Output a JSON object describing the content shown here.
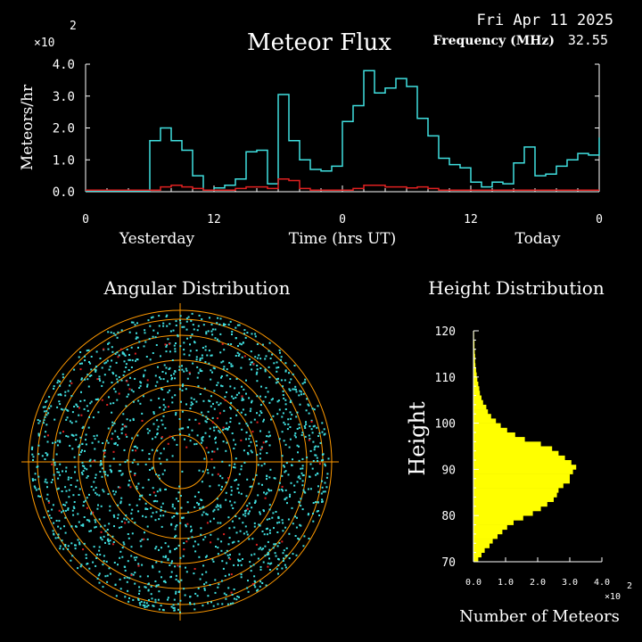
{
  "header": {
    "date": "Fri Apr 11 2025",
    "frequency_label": "Frequency (MHz)",
    "frequency_value": "32.55",
    "scale_note": "×10",
    "scale_exp": "2"
  },
  "colors": {
    "flux_line": "#40e0e0",
    "flux_secondary": "#e02020",
    "radar_ring": "#ff9900",
    "radar_dot": "#40e0e0",
    "radar_dot_alt": "#e02020",
    "hist_fill": "#ffff00",
    "axis": "#ffffff"
  },
  "chart_data": [
    {
      "type": "line",
      "title": "Meteor Flux",
      "ylabel": "Meteors/hr",
      "xlabel": "Time (hrs UT)",
      "y_scale_note": "×10^2",
      "ylim": [
        0,
        4.0
      ],
      "y_ticks": [
        "0.0",
        "1.0",
        "2.0",
        "3.0",
        "4.0"
      ],
      "x_ticks": [
        "0",
        "12",
        "0",
        "12",
        "0"
      ],
      "x_day_labels": [
        "Yesterday",
        "Today"
      ],
      "hours": 48,
      "series": [
        {
          "values": [
            0.02,
            0.02,
            0.02,
            0.02,
            0.02,
            0.02,
            1.6,
            2.0,
            1.6,
            1.3,
            0.5,
            0.05,
            0.12,
            0.2,
            0.4,
            1.25,
            1.3,
            0.25,
            3.05,
            1.6,
            1.0,
            0.7,
            0.65,
            0.8,
            2.2,
            2.7,
            3.8,
            3.1,
            3.25,
            3.55,
            3.3,
            2.3,
            1.75,
            1.05,
            0.85,
            0.75,
            0.3,
            0.15,
            0.3,
            0.25,
            0.9,
            1.4,
            0.5,
            0.55,
            0.8,
            1.0,
            1.2,
            1.15,
            1.7
          ]
        },
        {
          "values": [
            0.05,
            0.05,
            0.05,
            0.05,
            0.05,
            0.05,
            0.05,
            0.15,
            0.2,
            0.15,
            0.1,
            0.05,
            0.05,
            0.05,
            0.1,
            0.15,
            0.15,
            0.1,
            0.4,
            0.35,
            0.1,
            0.05,
            0.05,
            0.05,
            0.05,
            0.1,
            0.2,
            0.2,
            0.15,
            0.15,
            0.12,
            0.15,
            0.1,
            0.05,
            0.05,
            0.05,
            0.05,
            0.05,
            0.05,
            0.05,
            0.05,
            0.05,
            0.05,
            0.05,
            0.05,
            0.05,
            0.05,
            0.05,
            0.05
          ]
        }
      ]
    },
    {
      "type": "scatter",
      "title": "Angular Distribution",
      "note": "polar plot of meteor echo positions; concentric range rings"
    },
    {
      "type": "bar",
      "orientation": "horizontal",
      "title": "Height Distribution",
      "ylabel": "Height",
      "xlabel": "Number of Meteors",
      "x_scale_note": "×10^2",
      "ylim": [
        70,
        120
      ],
      "xlim": [
        0,
        4.0
      ],
      "y_ticks": [
        "70",
        "80",
        "90",
        "100",
        "110",
        "120"
      ],
      "x_ticks": [
        "0.0",
        "1.0",
        "2.0",
        "3.0",
        "4.0"
      ],
      "bins": [
        70,
        71,
        72,
        73,
        74,
        75,
        76,
        77,
        78,
        79,
        80,
        81,
        82,
        83,
        84,
        85,
        86,
        87,
        88,
        89,
        90,
        91,
        92,
        93,
        94,
        95,
        96,
        97,
        98,
        99,
        100,
        101,
        102,
        103,
        104,
        105,
        106,
        107,
        108,
        109,
        110,
        111,
        112,
        113,
        114,
        115,
        116,
        117,
        118,
        119
      ],
      "values": [
        0.15,
        0.25,
        0.35,
        0.5,
        0.6,
        0.75,
        0.9,
        1.05,
        1.25,
        1.55,
        1.85,
        2.1,
        2.3,
        2.5,
        2.6,
        2.65,
        2.8,
        3.0,
        3.0,
        3.1,
        3.2,
        3.05,
        2.85,
        2.65,
        2.45,
        2.1,
        1.6,
        1.3,
        1.05,
        0.85,
        0.7,
        0.55,
        0.45,
        0.4,
        0.3,
        0.25,
        0.2,
        0.18,
        0.15,
        0.12,
        0.1,
        0.08,
        0.06,
        0.05,
        0.05,
        0.04,
        0.03,
        0.03,
        0.02,
        0.02
      ]
    }
  ]
}
